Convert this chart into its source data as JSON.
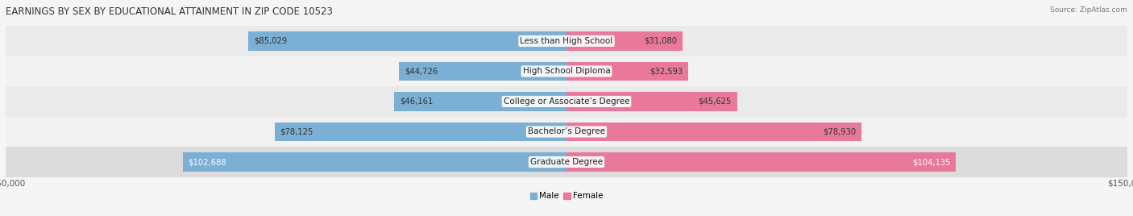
{
  "title": "EARNINGS BY SEX BY EDUCATIONAL ATTAINMENT IN ZIP CODE 10523",
  "source": "Source: ZipAtlas.com",
  "categories": [
    "Less than High School",
    "High School Diploma",
    "College or Associate’s Degree",
    "Bachelor’s Degree",
    "Graduate Degree"
  ],
  "male_values": [
    85029,
    44726,
    46161,
    78125,
    102688
  ],
  "female_values": [
    31080,
    32593,
    45625,
    78930,
    104135
  ],
  "male_color": "#7bafd4",
  "female_color": "#e8799a",
  "max_value": 150000,
  "bar_height": 0.62,
  "title_fontsize": 8.5,
  "label_fontsize": 7.5,
  "value_fontsize": 7.2,
  "axis_label_fontsize": 7.5,
  "row_colors": [
    "#e8e8e8",
    "#f0f0f0",
    "#e8e8e8",
    "#f0f0f0",
    "#e0e0e0"
  ],
  "bg_color": "#f5f5f5"
}
